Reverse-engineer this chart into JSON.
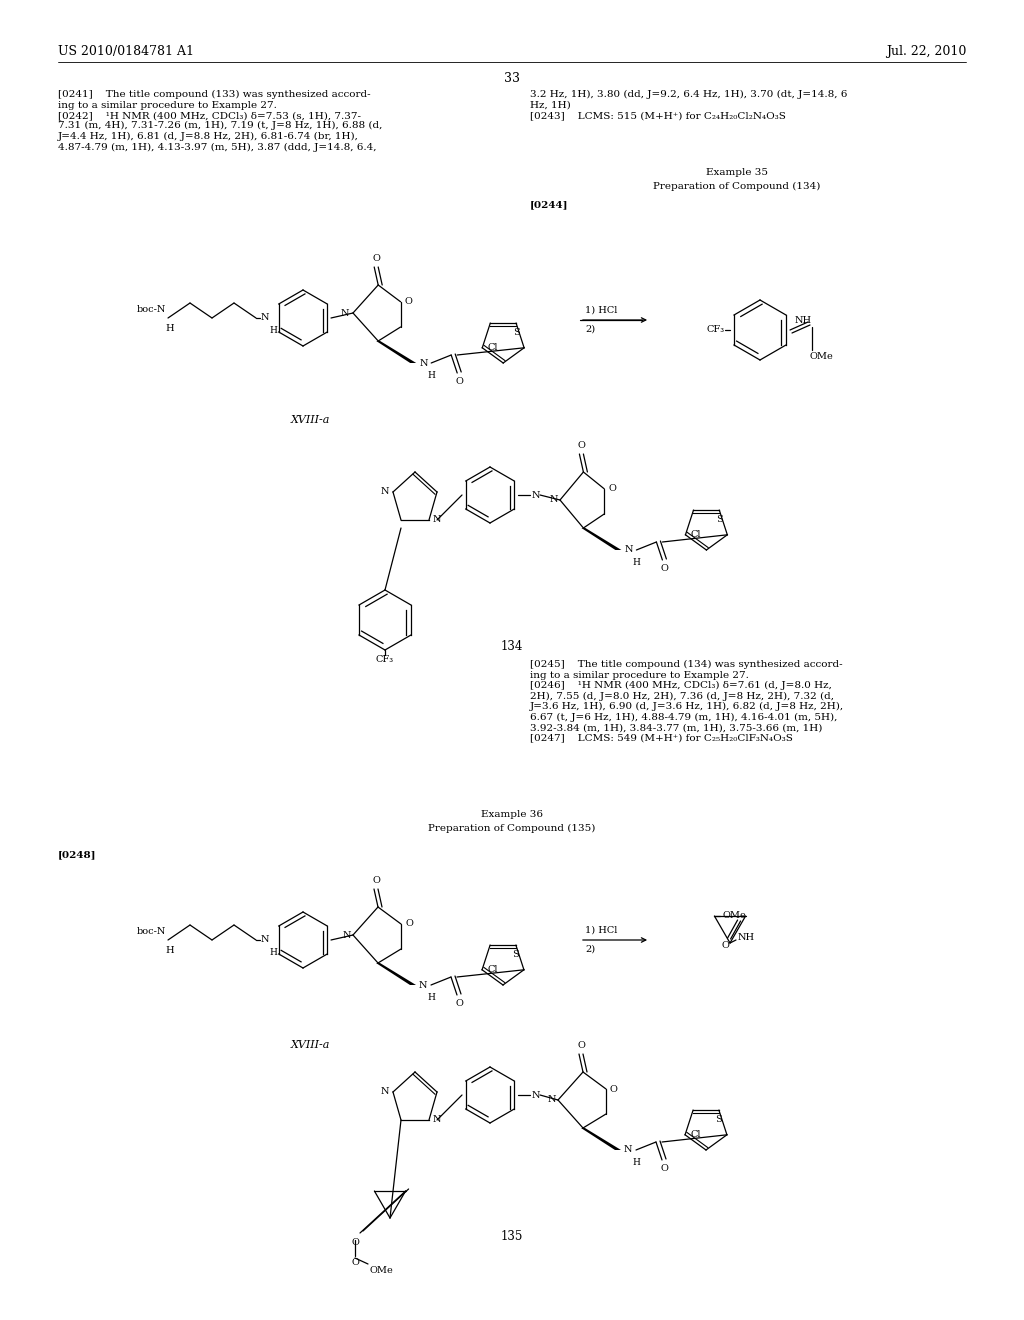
{
  "page_header_left": "US 2010/0184781 A1",
  "page_header_right": "Jul. 22, 2010",
  "page_number": "33",
  "background_color": "#ffffff",
  "text_color": "#000000"
}
